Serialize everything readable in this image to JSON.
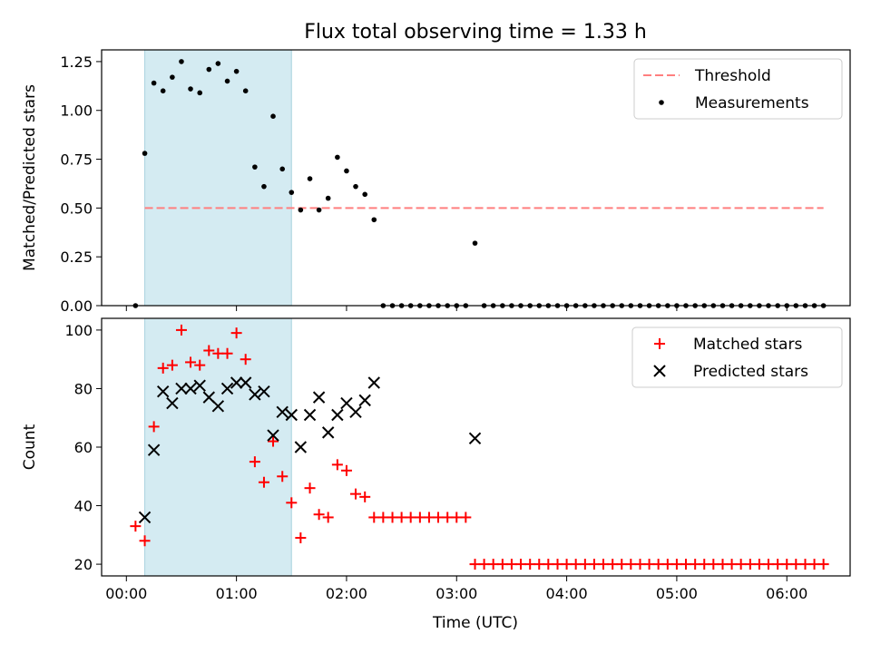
{
  "title": "Flux total observing time = 1.33 h",
  "xlabel": "Time (UTC)",
  "xticks": [
    "00:00",
    "01:00",
    "02:00",
    "03:00",
    "04:00",
    "05:00",
    "06:00"
  ],
  "chart_data": [
    {
      "type": "scatter",
      "ylabel": "Matched/Predicted stars",
      "ylim": [
        0,
        1.31
      ],
      "yticks": [
        "0.00",
        "0.25",
        "0.50",
        "0.75",
        "1.00",
        "1.25"
      ],
      "legend": [
        "Threshold",
        "Measurements"
      ],
      "legend_position": "top-right",
      "highlight_span": {
        "x0": 0.167,
        "x1": 1.5,
        "color": "#add8e6"
      },
      "threshold": {
        "y": 0.5,
        "x_from": 0.167,
        "x_to": 6.333,
        "color": "#ff7f7f"
      },
      "series": [
        {
          "name": "Measurements",
          "color": "#000000",
          "x": [
            0.083,
            0.167,
            0.25,
            0.333,
            0.417,
            0.5,
            0.583,
            0.667,
            0.75,
            0.833,
            0.917,
            1.0,
            1.083,
            1.167,
            1.25,
            1.333,
            1.417,
            1.5,
            1.583,
            1.667,
            1.75,
            1.833,
            1.917,
            2.0,
            2.083,
            2.167,
            2.25,
            3.167,
            2.333,
            2.417,
            2.5,
            2.583,
            2.667,
            2.75,
            2.833,
            2.917,
            3.0,
            3.083,
            3.25,
            3.333,
            3.417,
            3.5,
            3.583,
            3.667,
            3.75,
            3.833,
            3.917,
            4.0,
            4.083,
            4.167,
            4.25,
            4.333,
            4.417,
            4.5,
            4.583,
            4.667,
            4.75,
            4.833,
            4.917,
            5.0,
            5.083,
            5.167,
            5.25,
            5.333,
            5.417,
            5.5,
            5.583,
            5.667,
            5.75,
            5.833,
            5.917,
            6.0,
            6.083,
            6.167,
            6.25,
            6.333
          ],
          "y": [
            0.0,
            0.78,
            1.14,
            1.1,
            1.17,
            1.25,
            1.11,
            1.09,
            1.21,
            1.24,
            1.15,
            1.2,
            1.1,
            0.71,
            0.61,
            0.97,
            0.7,
            0.58,
            0.49,
            0.65,
            0.49,
            0.55,
            0.76,
            0.69,
            0.61,
            0.57,
            0.44,
            0.32,
            0,
            0,
            0,
            0,
            0,
            0,
            0,
            0,
            0,
            0,
            0,
            0,
            0,
            0,
            0,
            0,
            0,
            0,
            0,
            0,
            0,
            0,
            0,
            0,
            0,
            0,
            0,
            0,
            0,
            0,
            0,
            0,
            0,
            0,
            0,
            0,
            0,
            0,
            0,
            0,
            0,
            0,
            0,
            0,
            0,
            0,
            0,
            0
          ]
        }
      ]
    },
    {
      "type": "scatter",
      "ylabel": "Count",
      "ylim": [
        16,
        104
      ],
      "yticks": [
        "20",
        "40",
        "60",
        "80",
        "100"
      ],
      "legend": [
        "Matched stars",
        "Predicted stars"
      ],
      "legend_position": "top-right",
      "highlight_span": {
        "x0": 0.167,
        "x1": 1.5,
        "color": "#add8e6"
      },
      "series": [
        {
          "name": "Matched stars",
          "marker": "+",
          "color": "#ff0000",
          "x": [
            0.083,
            0.167,
            0.25,
            0.333,
            0.417,
            0.5,
            0.583,
            0.667,
            0.75,
            0.833,
            0.917,
            1.0,
            1.083,
            1.167,
            1.25,
            1.333,
            1.417,
            1.5,
            1.583,
            1.667,
            1.75,
            1.833,
            1.917,
            2.0,
            2.083,
            2.167,
            2.25,
            2.333,
            2.417,
            2.5,
            2.583,
            2.667,
            2.75,
            2.833,
            2.917,
            3.0,
            3.083,
            3.167,
            3.25,
            3.333,
            3.417,
            3.5,
            3.583,
            3.667,
            3.75,
            3.833,
            3.917,
            4.0,
            4.083,
            4.167,
            4.25,
            4.333,
            4.417,
            4.5,
            4.583,
            4.667,
            4.75,
            4.833,
            4.917,
            5.0,
            5.083,
            5.167,
            5.25,
            5.333,
            5.417,
            5.5,
            5.583,
            5.667,
            5.75,
            5.833,
            5.917,
            6.0,
            6.083,
            6.167,
            6.25,
            6.333
          ],
          "y": [
            33,
            28,
            67,
            87,
            88,
            100,
            89,
            88,
            93,
            92,
            92,
            99,
            90,
            55,
            48,
            62,
            50,
            41,
            29,
            46,
            37,
            36,
            54,
            52,
            44,
            43,
            36,
            36,
            36,
            36,
            36,
            36,
            36,
            36,
            36,
            36,
            36,
            20,
            20,
            20,
            20,
            20,
            20,
            20,
            20,
            20,
            20,
            20,
            20,
            20,
            20,
            20,
            20,
            20,
            20,
            20,
            20,
            20,
            20,
            20,
            20,
            20,
            20,
            20,
            20,
            20,
            20,
            20,
            20,
            20,
            20,
            20,
            20,
            20,
            20,
            20
          ]
        },
        {
          "name": "Predicted stars",
          "marker": "x",
          "color": "#000000",
          "x": [
            0.167,
            0.25,
            0.333,
            0.417,
            0.5,
            0.583,
            0.667,
            0.75,
            0.833,
            0.917,
            1.0,
            1.083,
            1.167,
            1.25,
            1.333,
            1.417,
            1.5,
            1.583,
            1.667,
            1.75,
            1.833,
            1.917,
            2.0,
            2.083,
            2.167,
            2.25,
            3.167
          ],
          "y": [
            36,
            59,
            79,
            75,
            80,
            80,
            81,
            77,
            74,
            80,
            82,
            82,
            78,
            79,
            64,
            72,
            71,
            60,
            71,
            77,
            65,
            71,
            75,
            72,
            76,
            82,
            63
          ]
        }
      ]
    }
  ]
}
